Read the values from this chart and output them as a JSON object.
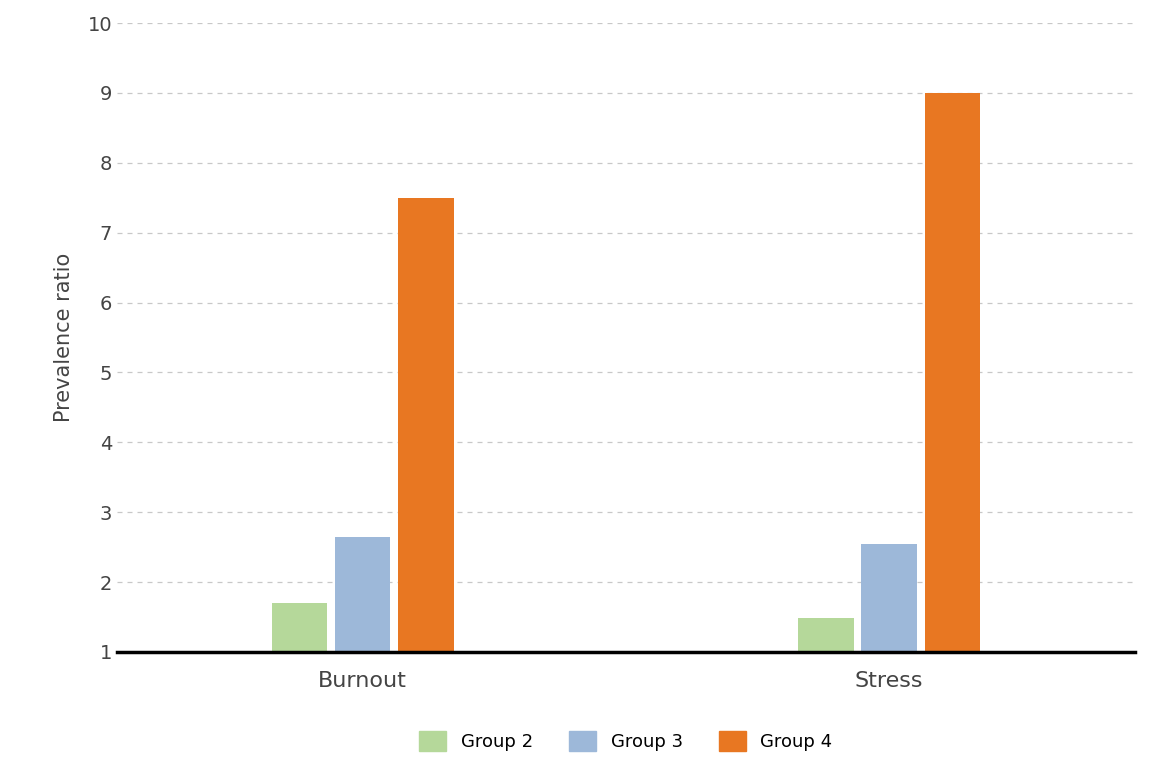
{
  "categories": [
    "Burnout",
    "Stress"
  ],
  "groups": [
    "Group 2",
    "Group 3",
    "Group 4"
  ],
  "values": {
    "Burnout": [
      1.7,
      2.65,
      7.5
    ],
    "Stress": [
      1.48,
      2.55,
      9.0
    ]
  },
  "colors": {
    "Group 2": "#b5d89a",
    "Group 3": "#9db8d9",
    "Group 4": "#e87722"
  },
  "ylabel": "Prevalence ratio",
  "ylim_min": 1,
  "ylim_max": 10,
  "yticks": [
    1,
    2,
    3,
    4,
    5,
    6,
    7,
    8,
    9,
    10
  ],
  "background_color": "#ffffff",
  "bar_width": 0.18,
  "cat_centers": [
    1.0,
    2.5
  ],
  "legend_fontsize": 13,
  "axis_fontsize": 14,
  "tick_fontsize": 14
}
